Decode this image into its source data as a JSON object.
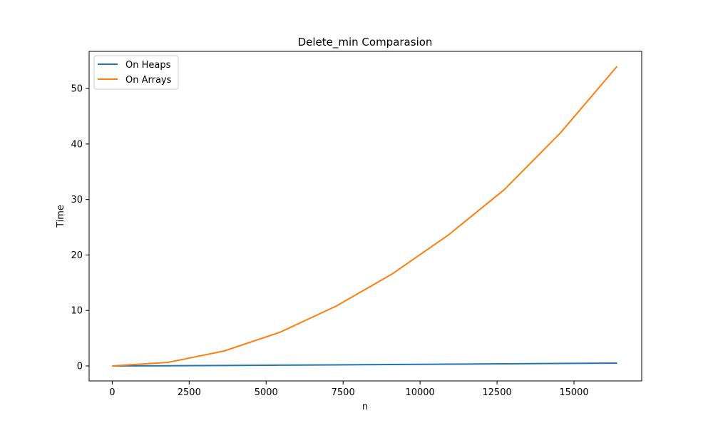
{
  "chart_data": {
    "type": "line",
    "title": "Delete_min Comparasion",
    "xlabel": "n",
    "ylabel": "Time",
    "xlim": [
      -750,
      17200
    ],
    "ylim": [
      -2.7,
      56.7
    ],
    "x_ticks": [
      0,
      2500,
      5000,
      7500,
      10000,
      12500,
      15000
    ],
    "y_ticks": [
      0,
      10,
      20,
      30,
      40,
      50
    ],
    "x_tick_labels": [
      "0",
      "2500",
      "5000",
      "7500",
      "10000",
      "12500",
      "15000"
    ],
    "y_tick_labels": [
      "0",
      "10",
      "20",
      "30",
      "40",
      "50"
    ],
    "grid": false,
    "legend_position": "top-left",
    "x": [
      0,
      1820,
      3640,
      5460,
      7280,
      9100,
      10920,
      12740,
      14560,
      16400
    ],
    "series": [
      {
        "name": "On Heaps",
        "color": "#1f77b4",
        "values": [
          0.0,
          0.03,
          0.08,
          0.14,
          0.2,
          0.26,
          0.32,
          0.38,
          0.45,
          0.52
        ]
      },
      {
        "name": "On Arrays",
        "color": "#ff7f0e",
        "values": [
          0.0,
          0.65,
          2.7,
          6.1,
          10.8,
          16.6,
          23.6,
          31.8,
          42.0,
          54.0
        ]
      }
    ]
  }
}
